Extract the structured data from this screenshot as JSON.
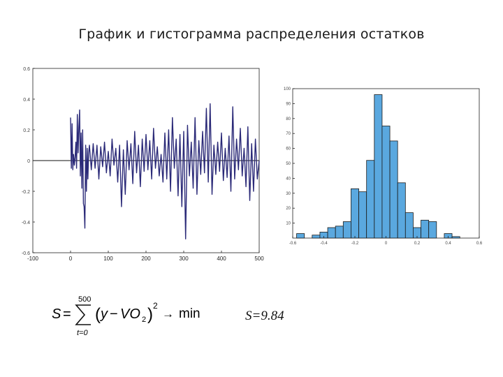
{
  "slide": {
    "title": "График и гистограмма распределения остатков",
    "result_text": "S=9.84"
  },
  "formula": {
    "lhs": "S",
    "eq": "=",
    "sum_upper": "500",
    "sum_lower": "t=0",
    "body_open": "(",
    "y": "y",
    "minus": "−",
    "vo": "VO",
    "vo_sub": "2",
    "body_close": ")",
    "power": "2",
    "arrow": "→",
    "min": "min"
  },
  "colors": {
    "residual_line": "#2b2a78",
    "bar_fill": "#5aa8df",
    "bar_stroke": "#1b1b1b",
    "axis": "#222222"
  },
  "chart_data": [
    {
      "type": "line",
      "title": "",
      "xlabel": "",
      "ylabel": "",
      "xlim": [
        -100,
        500
      ],
      "ylim": [
        -0.6,
        0.6
      ],
      "x_ticks": [
        -100,
        0,
        100,
        200,
        300,
        400,
        500
      ],
      "x_tick_labels": [
        "-100",
        "0",
        "100",
        "200",
        "300",
        "400",
        "500"
      ],
      "y_ticks": [
        0.6,
        0.4,
        0.2,
        0,
        -0.2,
        -0.4,
        -0.6
      ],
      "y_tick_labels": [
        "0.6",
        "0.4",
        "0.2",
        "0",
        "-0.2",
        "-0.4",
        "-0.6"
      ],
      "grid": false,
      "x": [
        0,
        2,
        4,
        6,
        8,
        10,
        12,
        14,
        16,
        18,
        20,
        22,
        24,
        26,
        28,
        30,
        32,
        34,
        36,
        38,
        40,
        42,
        44,
        46,
        48,
        50,
        55,
        60,
        65,
        70,
        75,
        80,
        85,
        90,
        95,
        100,
        105,
        110,
        115,
        120,
        125,
        130,
        135,
        140,
        145,
        150,
        155,
        160,
        165,
        170,
        175,
        180,
        185,
        190,
        195,
        200,
        205,
        210,
        215,
        220,
        225,
        230,
        235,
        240,
        245,
        250,
        255,
        260,
        265,
        270,
        275,
        280,
        285,
        290,
        295,
        300,
        305,
        310,
        315,
        320,
        325,
        330,
        335,
        340,
        345,
        350,
        355,
        360,
        365,
        370,
        375,
        380,
        385,
        390,
        395,
        400,
        405,
        410,
        415,
        420,
        425,
        430,
        435,
        440,
        445,
        450,
        455,
        460,
        465,
        470,
        475,
        480,
        485,
        490,
        495,
        500
      ],
      "y": [
        0.28,
        -0.05,
        0.24,
        -0.06,
        0.04,
        -0.03,
        0.02,
        0.12,
        -0.05,
        0.3,
        0.05,
        0.22,
        0.33,
        -0.1,
        0.18,
        -0.18,
        0.2,
        -0.28,
        -0.3,
        -0.44,
        0.1,
        -0.2,
        0.08,
        -0.12,
        0.05,
        0.1,
        -0.06,
        0.11,
        -0.05,
        0.1,
        -0.12,
        0.09,
        -0.04,
        0.12,
        -0.08,
        0.06,
        -0.1,
        0.14,
        -0.03,
        0.08,
        -0.14,
        0.1,
        -0.3,
        0.07,
        -0.22,
        0.13,
        -0.06,
        0.11,
        -0.15,
        0.19,
        -0.08,
        0.1,
        -0.17,
        0.14,
        -0.07,
        0.17,
        -0.06,
        0.13,
        -0.12,
        0.21,
        -0.05,
        0.09,
        -0.1,
        0.04,
        -0.14,
        0.18,
        -0.12,
        0.2,
        -0.2,
        0.28,
        -0.05,
        0.14,
        -0.23,
        0.17,
        -0.3,
        0.19,
        -0.51,
        0.23,
        -0.1,
        0.12,
        -0.18,
        0.28,
        -0.22,
        0.13,
        -0.09,
        0.19,
        -0.08,
        0.34,
        -0.14,
        0.37,
        -0.22,
        0.1,
        -0.09,
        0.12,
        -0.07,
        0.18,
        -0.13,
        0.08,
        -0.11,
        0.16,
        -0.2,
        0.35,
        -0.12,
        0.14,
        -0.06,
        0.21,
        -0.1,
        0.08,
        -0.17,
        0.22,
        -0.26,
        0.11,
        -0.2,
        0.14,
        -0.12,
        0.0
      ]
    },
    {
      "type": "bar",
      "title": "",
      "xlabel": "",
      "ylabel": "",
      "xlim": [
        -0.6,
        0.6
      ],
      "ylim": [
        0,
        100
      ],
      "bin_width": 0.05,
      "bins": [
        -0.55,
        -0.5,
        -0.45,
        -0.4,
        -0.35,
        -0.3,
        -0.25,
        -0.2,
        -0.15,
        -0.1,
        -0.05,
        0.0,
        0.05,
        0.1,
        0.15,
        0.2,
        0.25,
        0.3,
        0.35,
        0.4,
        0.45
      ],
      "values": [
        3,
        0,
        2,
        4,
        7,
        8,
        11,
        33,
        31,
        52,
        96,
        75,
        65,
        37,
        17,
        7,
        12,
        11,
        0,
        3,
        1
      ],
      "x_ticks": [
        -0.6,
        -0.4,
        -0.2,
        0,
        0.2,
        0.4,
        0.6
      ],
      "x_tick_labels": [
        "-0.6",
        "-0.4",
        "-0.2",
        "0",
        "0.2",
        "0.4",
        "0.6"
      ],
      "y_ticks": [
        10,
        20,
        30,
        40,
        50,
        60,
        70,
        80,
        90,
        100
      ],
      "y_tick_labels": [
        "10",
        "20",
        "30",
        "40",
        "50",
        "60",
        "70",
        "80",
        "90",
        "100"
      ],
      "grid": false
    }
  ]
}
